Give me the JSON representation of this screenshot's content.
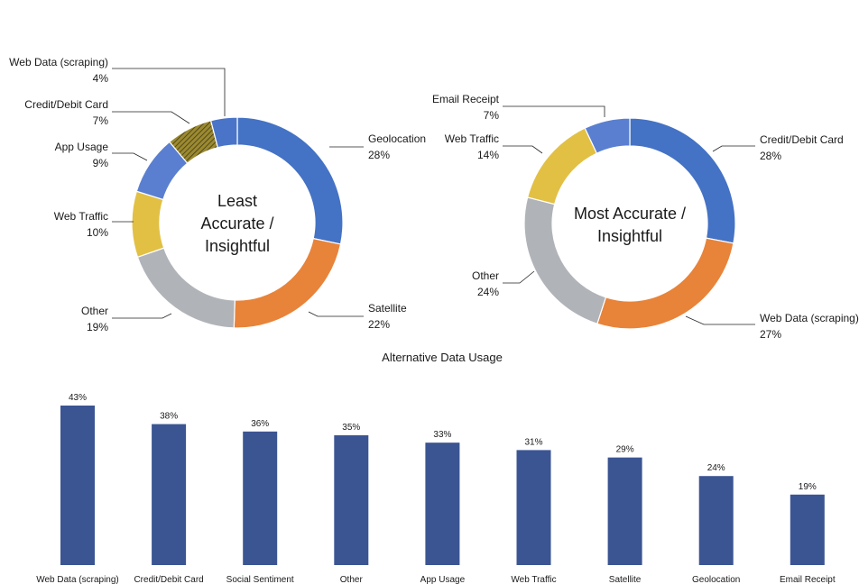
{
  "chart_data": [
    {
      "type": "pie",
      "variant": "donut",
      "center_label": [
        "Least",
        "Accurate /",
        "Insightful"
      ],
      "slices": [
        {
          "label": "Geolocation",
          "value": 28,
          "display": "28%",
          "color": "#4472c4"
        },
        {
          "label": "Satellite",
          "value": 22,
          "display": "22%",
          "color": "#e8833a"
        },
        {
          "label": "Other",
          "value": 19,
          "display": "19%",
          "color": "#b0b3b8"
        },
        {
          "label": "Web Traffic",
          "value": 10,
          "display": "10%",
          "color": "#e2c044"
        },
        {
          "label": "App Usage",
          "value": 9,
          "display": "9%",
          "color": "#5a7fd0"
        },
        {
          "label": "Credit/Debit Card",
          "value": 7,
          "display": "7%",
          "color": "#9c8a2f",
          "pattern": "hatched"
        },
        {
          "label": "Web Data (scraping)",
          "value": 4,
          "display": "4%",
          "color": "#4a74c8"
        }
      ]
    },
    {
      "type": "pie",
      "variant": "donut",
      "center_label": [
        "Most Accurate /",
        "Insightful"
      ],
      "slices": [
        {
          "label": "Credit/Debit Card",
          "value": 28,
          "display": "28%",
          "color": "#4472c4"
        },
        {
          "label": "Web Data (scraping)",
          "value": 27,
          "display": "27%",
          "color": "#e8833a"
        },
        {
          "label": "Other",
          "value": 24,
          "display": "24%",
          "color": "#b0b3b8"
        },
        {
          "label": "Web Traffic",
          "value": 14,
          "display": "14%",
          "color": "#e2c044"
        },
        {
          "label": "Email Receipt",
          "value": 7,
          "display": "7%",
          "color": "#5a7fd0"
        }
      ]
    },
    {
      "type": "bar",
      "title": "Alternative Data Usage",
      "categories": [
        "Web Data (scraping)",
        "Credit/Debit Card",
        "Social Sentiment",
        "Other",
        "App Usage",
        "Web Traffic",
        "Satellite",
        "Geolocation",
        "Email Receipt"
      ],
      "values": [
        43,
        38,
        36,
        35,
        33,
        31,
        29,
        24,
        19
      ],
      "value_labels": [
        "43%",
        "38%",
        "36%",
        "35%",
        "33%",
        "31%",
        "29%",
        "24%",
        "19%"
      ],
      "color": "#3b5593",
      "ylim": [
        0,
        43
      ],
      "grid": false
    }
  ]
}
